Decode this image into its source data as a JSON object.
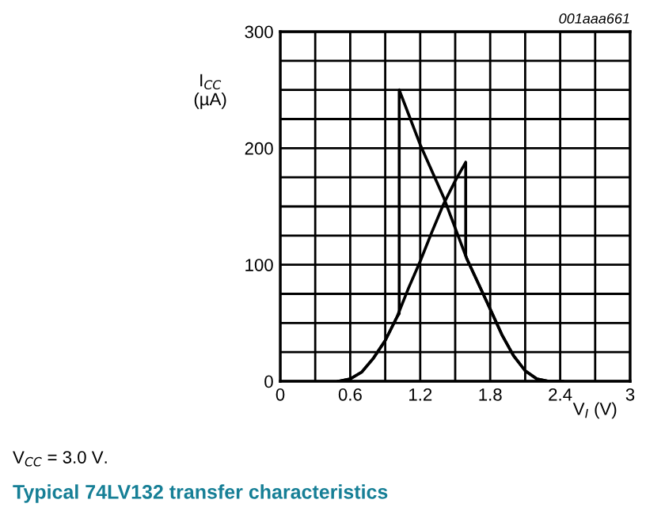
{
  "chart_data": {
    "type": "line",
    "title": "Typical 74LV132 transfer characteristics",
    "xlabel": "V$_{I}$ (V)",
    "ylabel": "I$_{CC}$\n(µA)",
    "annotations": [
      "001aaa661",
      "V$_{CC}$ = 3.0 V."
    ],
    "series": [
      {
        "color": "#000000",
        "x": [
          0.5,
          0.6,
          0.7,
          0.8,
          0.9,
          1.0,
          1.1,
          1.2,
          1.3,
          1.4,
          1.5,
          1.59,
          1.59,
          1.6,
          1.8,
          1.9,
          2.0,
          2.1,
          2.2,
          2.3,
          2.42
        ],
        "values": [
          0,
          2,
          8,
          20,
          35,
          55,
          80,
          103,
          128,
          152,
          172,
          188,
          108,
          105,
          62,
          40,
          22,
          9,
          2,
          0,
          0
        ]
      },
      {
        "color": "#000000",
        "x": [
          2.42,
          2.3,
          2.2,
          2.1,
          2.0,
          1.9,
          1.8,
          1.6,
          1.4,
          1.2,
          1.02,
          1.02,
          1.0,
          0.9,
          0.8,
          0.7,
          0.6,
          0.5
        ],
        "values": [
          0,
          0,
          2,
          9,
          22,
          40,
          62,
          105,
          158,
          203,
          250,
          58,
          55,
          35,
          20,
          8,
          2,
          0
        ]
      }
    ],
    "xlim": [
      0,
      3
    ],
    "ylim": [
      0,
      300
    ],
    "xticks": [
      0,
      {
        "value": 0.3,
        "label": null
      },
      0.6,
      {
        "value": 0.9,
        "label": null
      },
      1.2,
      {
        "value": 1.5,
        "label": null
      },
      1.8,
      {
        "value": 2.1,
        "label": null
      },
      2.4,
      {
        "value": 2.7,
        "label": null
      },
      3
    ],
    "yticks": [
      0,
      {
        "value": 25,
        "label": null
      },
      {
        "value": 50,
        "label": null
      },
      {
        "value": 75,
        "label": null
      },
      100,
      {
        "value": 125,
        "label": null
      },
      {
        "value": 150,
        "label": null
      },
      {
        "value": 175,
        "label": null
      },
      200,
      {
        "value": 225,
        "label": null
      },
      {
        "value": 250,
        "label": null
      },
      {
        "value": 275,
        "label": null
      },
      300
    ],
    "grid": true,
    "line_style": "solid",
    "marker": "none"
  }
}
